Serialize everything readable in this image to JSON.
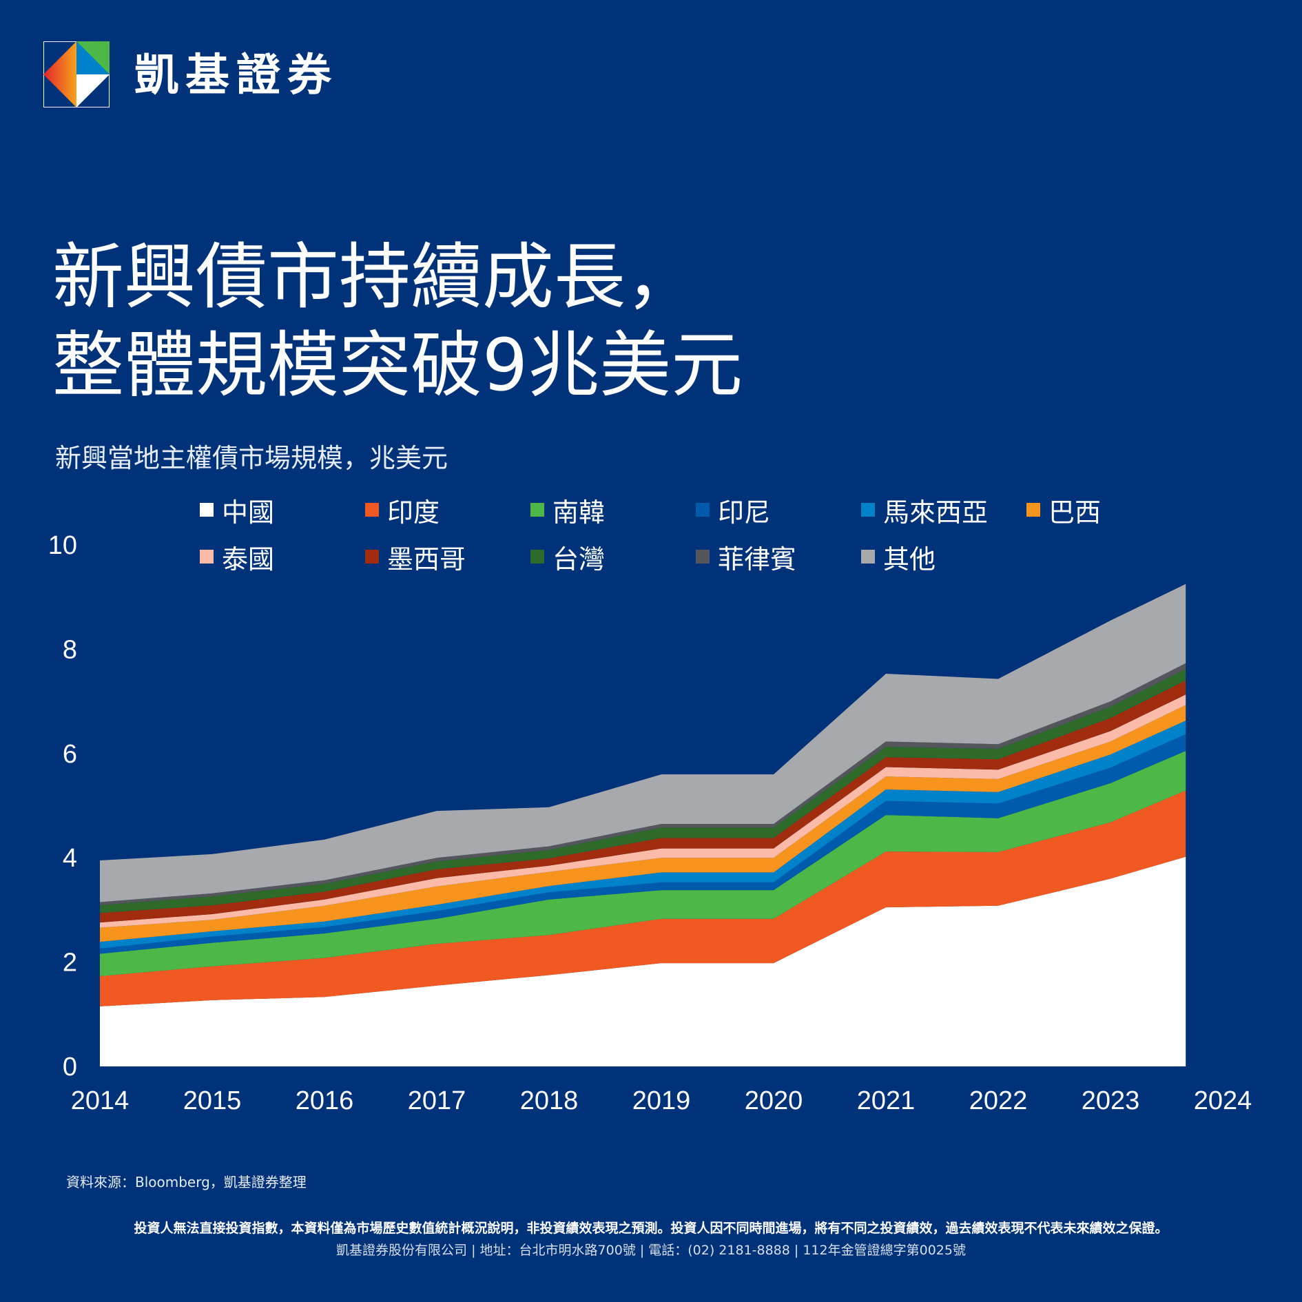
{
  "header": {
    "brand_name": "凱基證券"
  },
  "title_line1": "新興債市持續成長，",
  "title_line2": "整體規模突破9兆美元",
  "subtitle": "新興當地主權債市場規模，兆美元",
  "source_note": "資料來源：Bloomberg，凱基證券整理",
  "disclaimer": "投資人無法直接投資指數，本資料僅為市場歷史數值統計概況說明，非投資績效表現之預測。投資人因不同時間進場，將有不同之投資績效，過去績效表現不代表未來績效之保證。",
  "footer": "凱基證券股份有限公司 | 地址：台北市明水路700號 | 電話：(02) 2181-8888 | 112年金管證總字第0025號",
  "chart_data": {
    "type": "area",
    "stacked": true,
    "title": "",
    "xlabel": "",
    "ylabel": "",
    "ylim": [
      0,
      10
    ],
    "yticks": [
      0,
      2,
      4,
      6,
      8,
      10
    ],
    "xticks": [
      "2014",
      "2015",
      "2016",
      "2017",
      "2018",
      "2019",
      "2020",
      "2021",
      "2022",
      "2023",
      "2024"
    ],
    "x": [
      2014,
      2015,
      2016,
      2017,
      2018,
      2019,
      2020,
      2021,
      2022,
      2023,
      2023.67
    ],
    "legend_position": "top",
    "series": [
      {
        "name": "中國",
        "color": "#FFFFFF",
        "values": [
          1.15,
          1.27,
          1.33,
          1.55,
          1.75,
          1.98,
          1.98,
          3.05,
          3.08,
          3.6,
          4.02
        ]
      },
      {
        "name": "印度",
        "color": "#F05A22",
        "values": [
          0.58,
          0.65,
          0.75,
          0.8,
          0.77,
          0.85,
          0.85,
          1.07,
          1.03,
          1.08,
          1.27
        ]
      },
      {
        "name": "南韓",
        "color": "#4DB848",
        "values": [
          0.43,
          0.45,
          0.47,
          0.48,
          0.68,
          0.55,
          0.55,
          0.7,
          0.65,
          0.75,
          0.76
        ]
      },
      {
        "name": "印尼",
        "color": "#005BAC",
        "values": [
          0.1,
          0.12,
          0.12,
          0.15,
          0.14,
          0.15,
          0.15,
          0.27,
          0.28,
          0.3,
          0.32
        ]
      },
      {
        "name": "馬來西亞",
        "color": "#0082CA",
        "values": [
          0.13,
          0.1,
          0.11,
          0.12,
          0.12,
          0.19,
          0.19,
          0.22,
          0.22,
          0.25,
          0.26
        ]
      },
      {
        "name": "巴西",
        "color": "#F7941D",
        "values": [
          0.27,
          0.22,
          0.3,
          0.35,
          0.27,
          0.28,
          0.28,
          0.25,
          0.25,
          0.25,
          0.3
        ]
      },
      {
        "name": "泰國",
        "color": "#FBBBA8",
        "values": [
          0.1,
          0.11,
          0.12,
          0.16,
          0.12,
          0.18,
          0.18,
          0.18,
          0.18,
          0.2,
          0.2
        ]
      },
      {
        "name": "墨西哥",
        "color": "#A12C0E",
        "values": [
          0.18,
          0.17,
          0.15,
          0.17,
          0.14,
          0.2,
          0.2,
          0.19,
          0.2,
          0.25,
          0.27
        ]
      },
      {
        "name": "台灣",
        "color": "#2E6B2A",
        "values": [
          0.15,
          0.17,
          0.15,
          0.15,
          0.16,
          0.2,
          0.2,
          0.2,
          0.2,
          0.22,
          0.22
        ]
      },
      {
        "name": "菲律賓",
        "color": "#54565B",
        "values": [
          0.06,
          0.06,
          0.07,
          0.07,
          0.07,
          0.07,
          0.07,
          0.1,
          0.09,
          0.1,
          0.11
        ]
      },
      {
        "name": "其他",
        "color": "#A7A9AC",
        "values": [
          0.8,
          0.75,
          0.78,
          0.9,
          0.75,
          0.95,
          0.95,
          1.3,
          1.25,
          1.55,
          1.52
        ]
      }
    ]
  }
}
